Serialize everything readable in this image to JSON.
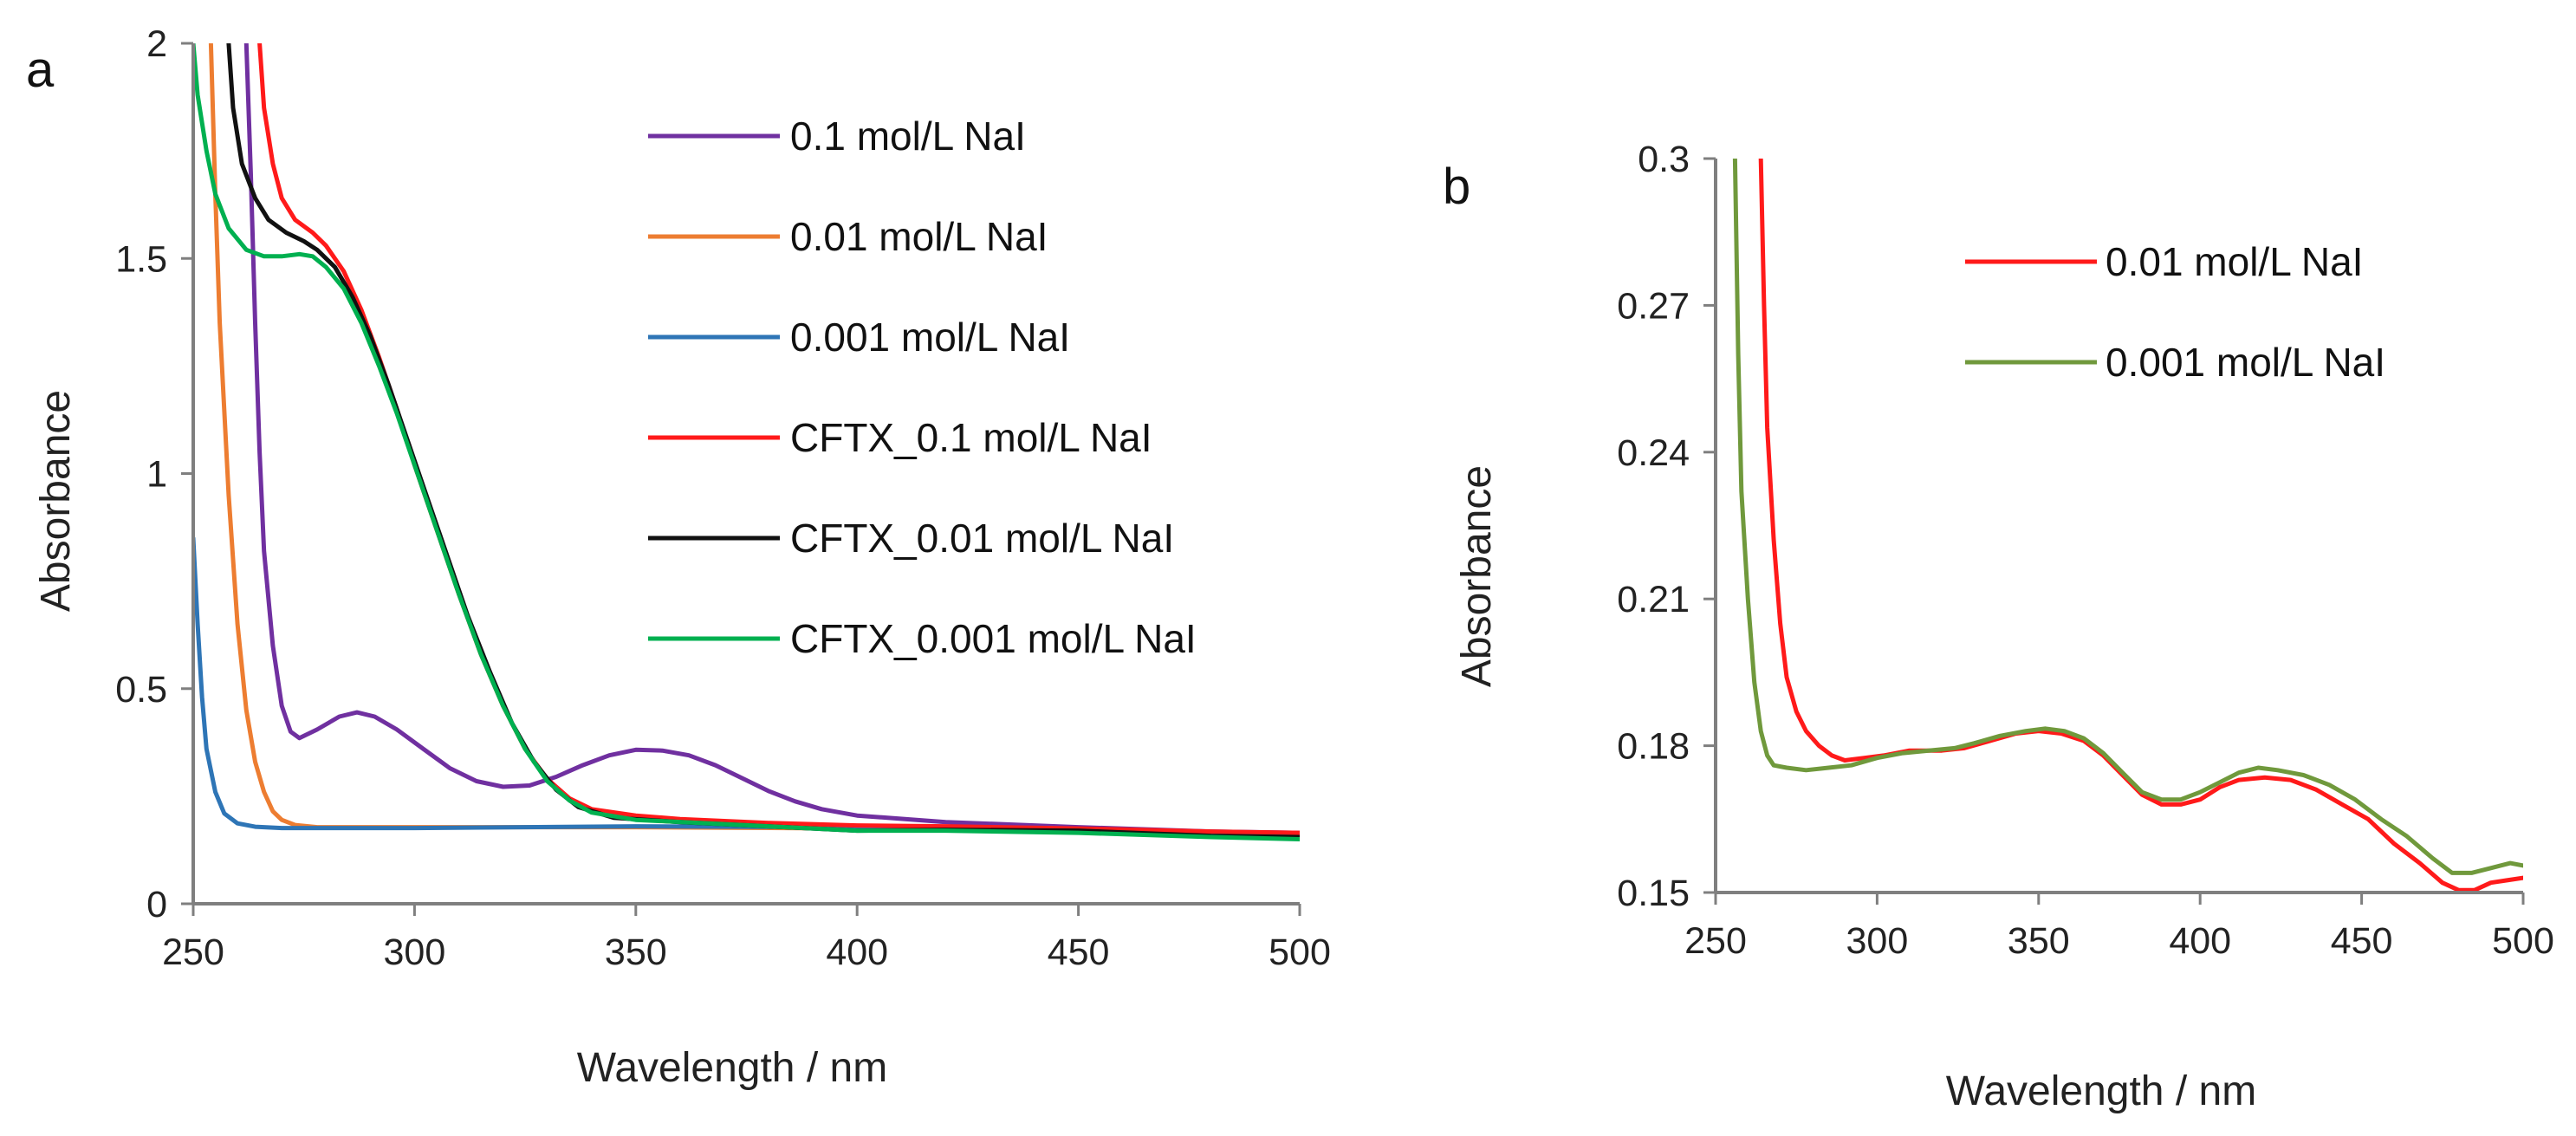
{
  "chart_data": [
    {
      "type": "line",
      "panel_label": "a",
      "xlabel": "Wavelength  / nm",
      "ylabel": "Absorbance",
      "xlim": [
        250,
        500
      ],
      "ylim": [
        0,
        2
      ],
      "xticks": [
        "250",
        "300",
        "350",
        "400",
        "450",
        "500"
      ],
      "yticks": [
        "0",
        "0.5",
        "1",
        "1.5",
        "2"
      ],
      "legend_position": "top-right",
      "series": [
        {
          "name": "0.1 mol/L NaI",
          "color": "#7030a0",
          "points": [
            [
              262,
              2
            ],
            [
              263,
              1.7
            ],
            [
              264,
              1.35
            ],
            [
              265,
              1.05
            ],
            [
              266,
              0.82
            ],
            [
              268,
              0.6
            ],
            [
              270,
              0.46
            ],
            [
              272,
              0.4
            ],
            [
              274,
              0.385
            ],
            [
              278,
              0.405
            ],
            [
              283,
              0.435
            ],
            [
              287,
              0.445
            ],
            [
              291,
              0.435
            ],
            [
              296,
              0.405
            ],
            [
              302,
              0.36
            ],
            [
              308,
              0.315
            ],
            [
              314,
              0.285
            ],
            [
              320,
              0.272
            ],
            [
              326,
              0.275
            ],
            [
              332,
              0.295
            ],
            [
              338,
              0.322
            ],
            [
              344,
              0.345
            ],
            [
              350,
              0.358
            ],
            [
              356,
              0.356
            ],
            [
              362,
              0.345
            ],
            [
              368,
              0.322
            ],
            [
              374,
              0.292
            ],
            [
              380,
              0.262
            ],
            [
              386,
              0.238
            ],
            [
              392,
              0.22
            ],
            [
              400,
              0.205
            ],
            [
              420,
              0.19
            ],
            [
              450,
              0.178
            ],
            [
              480,
              0.168
            ],
            [
              500,
              0.165
            ]
          ]
        },
        {
          "name": "0.01 mol/L NaI",
          "color": "#ed7d31",
          "points": [
            [
              254,
              2
            ],
            [
              255,
              1.65
            ],
            [
              256,
              1.35
            ],
            [
              258,
              0.95
            ],
            [
              260,
              0.65
            ],
            [
              262,
              0.45
            ],
            [
              264,
              0.33
            ],
            [
              266,
              0.26
            ],
            [
              268,
              0.215
            ],
            [
              270,
              0.195
            ],
            [
              273,
              0.183
            ],
            [
              278,
              0.178
            ],
            [
              300,
              0.178
            ],
            [
              350,
              0.178
            ],
            [
              400,
              0.175
            ],
            [
              450,
              0.17
            ],
            [
              480,
              0.162
            ],
            [
              500,
              0.16
            ]
          ]
        },
        {
          "name": "0.001 mol/L NaI",
          "color": "#2e75b6",
          "points": [
            [
              250,
              0.85
            ],
            [
              251,
              0.65
            ],
            [
              252,
              0.48
            ],
            [
              253,
              0.36
            ],
            [
              255,
              0.26
            ],
            [
              257,
              0.21
            ],
            [
              260,
              0.187
            ],
            [
              264,
              0.179
            ],
            [
              270,
              0.176
            ],
            [
              300,
              0.176
            ],
            [
              350,
              0.18
            ],
            [
              400,
              0.178
            ],
            [
              450,
              0.17
            ],
            [
              480,
              0.16
            ],
            [
              500,
              0.158
            ]
          ]
        },
        {
          "name": "CFTX_0.1 mol/L NaI",
          "color": "#ff1a1a",
          "points": [
            [
              265,
              2
            ],
            [
              266,
              1.85
            ],
            [
              268,
              1.72
            ],
            [
              270,
              1.64
            ],
            [
              273,
              1.59
            ],
            [
              277,
              1.56
            ],
            [
              280,
              1.53
            ],
            [
              284,
              1.47
            ],
            [
              288,
              1.38
            ],
            [
              292,
              1.27
            ],
            [
              296,
              1.15
            ],
            [
              300,
              1.02
            ],
            [
              305,
              0.87
            ],
            [
              310,
              0.72
            ],
            [
              315,
              0.58
            ],
            [
              320,
              0.46
            ],
            [
              325,
              0.36
            ],
            [
              330,
              0.29
            ],
            [
              335,
              0.245
            ],
            [
              340,
              0.22
            ],
            [
              350,
              0.205
            ],
            [
              360,
              0.197
            ],
            [
              380,
              0.188
            ],
            [
              400,
              0.182
            ],
            [
              420,
              0.18
            ],
            [
              450,
              0.175
            ],
            [
              480,
              0.168
            ],
            [
              500,
              0.165
            ]
          ]
        },
        {
          "name": "CFTX_0.01 mol/L NaI",
          "color": "#111111",
          "points": [
            [
              258,
              2
            ],
            [
              259,
              1.85
            ],
            [
              261,
              1.72
            ],
            [
              264,
              1.64
            ],
            [
              267,
              1.59
            ],
            [
              271,
              1.56
            ],
            [
              275,
              1.54
            ],
            [
              278,
              1.52
            ],
            [
              282,
              1.48
            ],
            [
              286,
              1.41
            ],
            [
              290,
              1.32
            ],
            [
              294,
              1.21
            ],
            [
              298,
              1.09
            ],
            [
              302,
              0.97
            ],
            [
              307,
              0.82
            ],
            [
              312,
              0.67
            ],
            [
              317,
              0.54
            ],
            [
              322,
              0.42
            ],
            [
              327,
              0.33
            ],
            [
              332,
              0.265
            ],
            [
              337,
              0.225
            ],
            [
              345,
              0.2
            ],
            [
              360,
              0.19
            ],
            [
              400,
              0.17
            ],
            [
              420,
              0.172
            ],
            [
              450,
              0.17
            ],
            [
              480,
              0.158
            ],
            [
              500,
              0.155
            ]
          ]
        },
        {
          "name": "CFTX_0.001 mol/L NaI",
          "color": "#00b050",
          "points": [
            [
              250,
              2
            ],
            [
              251,
              1.88
            ],
            [
              253,
              1.75
            ],
            [
              255,
              1.65
            ],
            [
              258,
              1.57
            ],
            [
              262,
              1.52
            ],
            [
              266,
              1.505
            ],
            [
              270,
              1.505
            ],
            [
              274,
              1.51
            ],
            [
              277,
              1.505
            ],
            [
              280,
              1.48
            ],
            [
              284,
              1.43
            ],
            [
              288,
              1.35
            ],
            [
              292,
              1.25
            ],
            [
              296,
              1.14
            ],
            [
              300,
              1.02
            ],
            [
              305,
              0.87
            ],
            [
              310,
              0.72
            ],
            [
              315,
              0.58
            ],
            [
              320,
              0.46
            ],
            [
              325,
              0.36
            ],
            [
              330,
              0.285
            ],
            [
              335,
              0.24
            ],
            [
              340,
              0.212
            ],
            [
              350,
              0.195
            ],
            [
              370,
              0.185
            ],
            [
              400,
              0.17
            ],
            [
              420,
              0.17
            ],
            [
              450,
              0.165
            ],
            [
              480,
              0.155
            ],
            [
              500,
              0.15
            ]
          ]
        }
      ]
    },
    {
      "type": "line",
      "panel_label": "b",
      "xlabel": "Wavelength  / nm",
      "ylabel": "Absorbance",
      "xlim": [
        250,
        500
      ],
      "ylim": [
        0.15,
        0.3
      ],
      "xticks": [
        "250",
        "300",
        "350",
        "400",
        "450",
        "500"
      ],
      "yticks": [
        "0.15",
        "0.18",
        "0.21",
        "0.24",
        "0.27",
        "0.3"
      ],
      "legend_position": "top-right",
      "series": [
        {
          "name": "0.01 mol/L NaI",
          "color": "#ff1a1a",
          "points": [
            [
              264,
              0.3
            ],
            [
              265,
              0.27
            ],
            [
              266,
              0.245
            ],
            [
              268,
              0.222
            ],
            [
              270,
              0.205
            ],
            [
              272,
              0.194
            ],
            [
              275,
              0.187
            ],
            [
              278,
              0.183
            ],
            [
              282,
              0.18
            ],
            [
              286,
              0.178
            ],
            [
              290,
              0.177
            ],
            [
              296,
              0.1775
            ],
            [
              302,
              0.178
            ],
            [
              310,
              0.179
            ],
            [
              320,
              0.179
            ],
            [
              327,
              0.1795
            ],
            [
              335,
              0.181
            ],
            [
              343,
              0.1825
            ],
            [
              350,
              0.183
            ],
            [
              357,
              0.1825
            ],
            [
              364,
              0.181
            ],
            [
              370,
              0.178
            ],
            [
              376,
              0.174
            ],
            [
              382,
              0.17
            ],
            [
              388,
              0.168
            ],
            [
              394,
              0.168
            ],
            [
              400,
              0.169
            ],
            [
              406,
              0.1715
            ],
            [
              412,
              0.173
            ],
            [
              420,
              0.1735
            ],
            [
              428,
              0.173
            ],
            [
              436,
              0.171
            ],
            [
              444,
              0.168
            ],
            [
              452,
              0.165
            ],
            [
              460,
              0.16
            ],
            [
              468,
              0.156
            ],
            [
              475,
              0.152
            ],
            [
              480,
              0.1505
            ],
            [
              485,
              0.1505
            ],
            [
              490,
              0.152
            ],
            [
              495,
              0.1525
            ],
            [
              500,
              0.153
            ]
          ]
        },
        {
          "name": "0.001 mol/L NaI",
          "color": "#70993c",
          "points": [
            [
              256,
              0.3
            ],
            [
              257,
              0.26
            ],
            [
              258,
              0.232
            ],
            [
              260,
              0.21
            ],
            [
              262,
              0.193
            ],
            [
              264,
              0.183
            ],
            [
              266,
              0.178
            ],
            [
              268,
              0.176
            ],
            [
              272,
              0.1755
            ],
            [
              278,
              0.175
            ],
            [
              285,
              0.1755
            ],
            [
              292,
              0.176
            ],
            [
              300,
              0.1775
            ],
            [
              308,
              0.1785
            ],
            [
              316,
              0.179
            ],
            [
              324,
              0.1795
            ],
            [
              330,
              0.1805
            ],
            [
              338,
              0.182
            ],
            [
              346,
              0.183
            ],
            [
              352,
              0.1835
            ],
            [
              358,
              0.183
            ],
            [
              364,
              0.1815
            ],
            [
              370,
              0.1785
            ],
            [
              376,
              0.1745
            ],
            [
              382,
              0.1705
            ],
            [
              388,
              0.169
            ],
            [
              394,
              0.169
            ],
            [
              400,
              0.1705
            ],
            [
              406,
              0.1725
            ],
            [
              412,
              0.1745
            ],
            [
              418,
              0.1755
            ],
            [
              424,
              0.175
            ],
            [
              432,
              0.174
            ],
            [
              440,
              0.172
            ],
            [
              448,
              0.169
            ],
            [
              456,
              0.165
            ],
            [
              464,
              0.1615
            ],
            [
              472,
              0.157
            ],
            [
              478,
              0.154
            ],
            [
              484,
              0.154
            ],
            [
              490,
              0.155
            ],
            [
              496,
              0.156
            ],
            [
              500,
              0.1555
            ]
          ]
        }
      ]
    }
  ]
}
